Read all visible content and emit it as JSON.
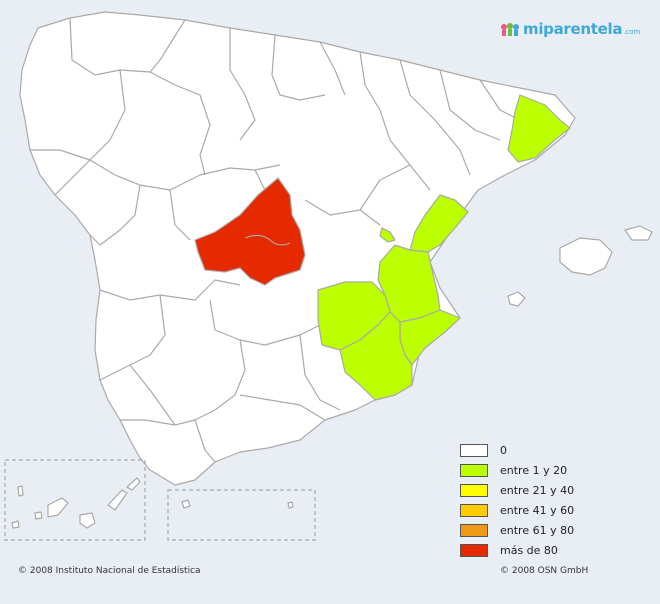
{
  "brand": {
    "name": "miparentela",
    "suffix": ".com"
  },
  "legend": {
    "items": [
      {
        "label": "0",
        "color": "#ffffff"
      },
      {
        "label": "entre 1 y 20",
        "color": "#bbff00"
      },
      {
        "label": "entre 21 y 40",
        "color": "#ffff00"
      },
      {
        "label": "entre 41 y 60",
        "color": "#ffcc00"
      },
      {
        "label": "entre 61 y 80",
        "color": "#ee9a18"
      },
      {
        "label": "más de 80",
        "color": "#e62a00"
      }
    ]
  },
  "colors": {
    "province_default": "#ffffff",
    "highlight_low": "#bbff00",
    "highlight_high": "#e62a00",
    "background": "#e8eef4",
    "border": "#a9a9a9"
  },
  "footer": {
    "left": "© 2008 Instituto Nacional de Estadística",
    "right": "© 2008 OSN GmbH"
  }
}
